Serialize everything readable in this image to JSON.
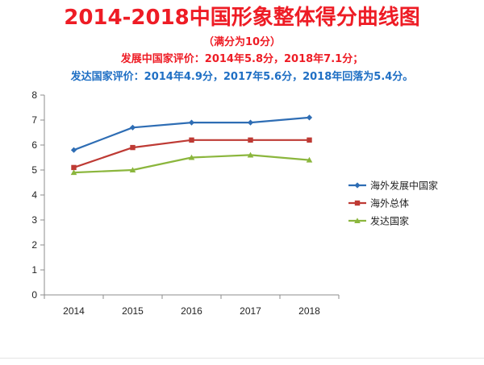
{
  "header": {
    "title": "2014-2018中国形象整体得分曲线图",
    "subtitle": "（满分为10分）",
    "developing_note": "发展中国家评价：2014年5.8分，2018年7.1分；",
    "developed_note": "发达国家评价：2014年4.9分，2017年5.6分，2018年回落为5.4分。"
  },
  "colors": {
    "title": "#ee1c25",
    "developed_note": "#1f6fc4"
  },
  "chart_data": {
    "type": "line",
    "x": [
      "2014",
      "2015",
      "2016",
      "2017",
      "2018"
    ],
    "ylim": [
      0,
      8
    ],
    "yticks": [
      0,
      1,
      2,
      3,
      4,
      5,
      6,
      7,
      8
    ],
    "grid": false,
    "legend_position": "right",
    "series": [
      {
        "name": "海外发展中国家",
        "values": [
          5.8,
          6.7,
          6.9,
          6.9,
          7.1
        ],
        "color": "#2e6db4",
        "marker": "diamond"
      },
      {
        "name": "海外总体",
        "values": [
          5.1,
          5.9,
          6.2,
          6.2,
          6.2
        ],
        "color": "#be3a34",
        "marker": "square"
      },
      {
        "name": "发达国家",
        "values": [
          4.9,
          5.0,
          5.5,
          5.6,
          5.4
        ],
        "color": "#8bb63d",
        "marker": "triangle"
      }
    ]
  }
}
